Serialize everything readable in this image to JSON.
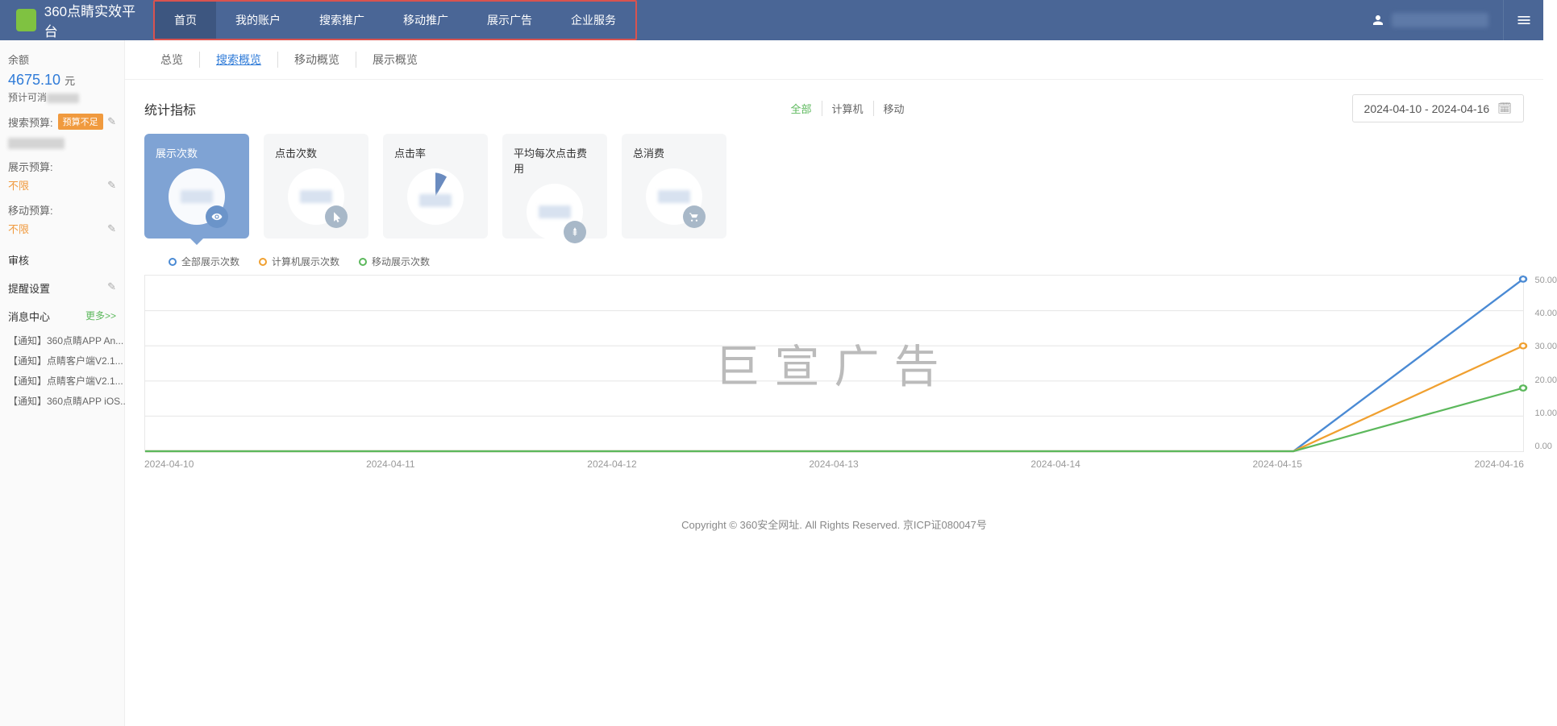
{
  "header": {
    "logo_text": "360点睛实效平台",
    "nav": [
      "首页",
      "我的账户",
      "搜索推广",
      "移动推广",
      "展示广告",
      "企业服务"
    ],
    "nav_active": 0
  },
  "sidebar": {
    "balance_label": "余额",
    "balance_value": "4675.10",
    "balance_unit": "元",
    "estimate_label": "预计可消",
    "search_budget_label": "搜索预算:",
    "search_budget_badge": "预算不足",
    "display_budget_label": "展示预算:",
    "display_budget_value": "不限",
    "mobile_budget_label": "移动预算:",
    "mobile_budget_value": "不限",
    "audit_label": "审核",
    "alert_label": "提醒设置",
    "msg_label": "消息中心",
    "msg_more": "更多>>",
    "messages": [
      "【通知】360点睛APP An...",
      "【通知】点睛客户端V2.1...",
      "【通知】点睛客户端V2.1...",
      "【通知】360点睛APP iOS..."
    ]
  },
  "tabs": {
    "items": [
      "总览",
      "搜索概览",
      "移动概览",
      "展示概览"
    ],
    "active": 1
  },
  "stats": {
    "title": "统计指标",
    "filters": [
      "全部",
      "计算机",
      "移动"
    ],
    "filter_active": 0,
    "date_range": "2024-04-10 - 2024-04-16"
  },
  "cards": [
    {
      "title": "展示次数",
      "icon": "eye",
      "active": true
    },
    {
      "title": "点击次数",
      "icon": "cursor",
      "active": false
    },
    {
      "title": "点击率",
      "icon": "pie",
      "active": false
    },
    {
      "title": "平均每次点击费用",
      "icon": "yen",
      "active": false
    },
    {
      "title": "总消费",
      "icon": "cart",
      "active": false
    }
  ],
  "chart": {
    "legend": [
      {
        "label": "全部展示次数",
        "color": "#4a8ad4"
      },
      {
        "label": "计算机展示次数",
        "color": "#f0a030"
      },
      {
        "label": "移动展示次数",
        "color": "#5cb85c"
      }
    ],
    "x_labels": [
      "2024-04-10",
      "2024-04-11",
      "2024-04-12",
      "2024-04-13",
      "2024-04-14",
      "2024-04-15",
      "2024-04-16"
    ],
    "y_labels": [
      "50.00",
      "40.00",
      "30.00",
      "20.00",
      "10.00",
      "0.00"
    ],
    "ylim": [
      0,
      50
    ],
    "series": [
      {
        "color": "#4a8ad4",
        "values": [
          0,
          0,
          0,
          0,
          0,
          0,
          49
        ]
      },
      {
        "color": "#f0a030",
        "values": [
          0,
          0,
          0,
          0,
          0,
          0,
          30
        ]
      },
      {
        "color": "#5cb85c",
        "values": [
          0,
          0,
          0,
          0,
          0,
          0,
          18
        ]
      }
    ],
    "grid_color": "#e8e8e8",
    "watermark": "巨宣广告"
  },
  "footer": "Copyright © 360安全网址. All Rights Reserved. 京ICP证080047号"
}
